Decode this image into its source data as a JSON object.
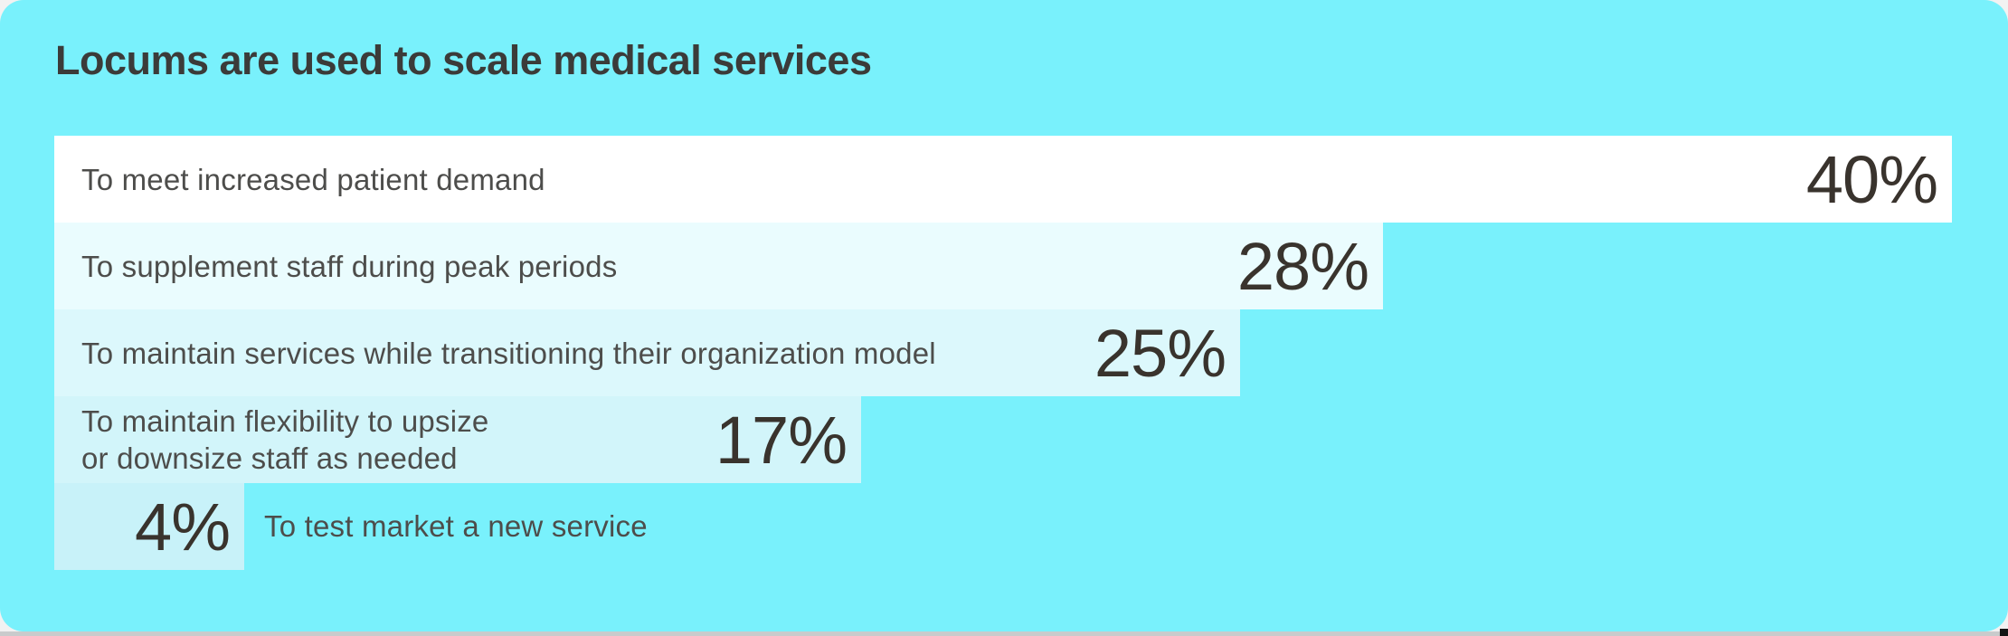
{
  "page": {
    "card_background": "#79f1fc",
    "bottom_strip_color": "#c9cbcc",
    "corner_mark_color": "#141414",
    "title_color": "#3b3b39",
    "label_color": "#4d4d4b",
    "value_color": "#39332d"
  },
  "chart_data": {
    "type": "bar",
    "orientation": "horizontal",
    "title": "Locums are used to scale medical services",
    "unit": "%",
    "xlim": [
      0,
      40
    ],
    "grid": false,
    "legend": false,
    "categories": [
      "To meet increased patient demand",
      "To supplement staff during peak periods",
      "To maintain services while transitioning their organization model",
      "To maintain flexibility to upsize or downsize staff as needed",
      "To test market a new service"
    ],
    "values": [
      40,
      28,
      25,
      17,
      4
    ],
    "bars": [
      {
        "label_lines": [
          "To meet increased patient demand"
        ],
        "value": 40,
        "pct_label": "40%",
        "color": "#ffffff",
        "label_placement": "inside"
      },
      {
        "label_lines": [
          "To supplement staff during peak periods"
        ],
        "value": 28,
        "pct_label": "28%",
        "color": "#eafcfe",
        "label_placement": "inside"
      },
      {
        "label_lines": [
          "To maintain services while transitioning their organization model"
        ],
        "value": 25,
        "pct_label": "25%",
        "color": "#dcf8fc",
        "label_placement": "inside"
      },
      {
        "label_lines": [
          "To maintain flexibility to upsize",
          "or downsize staff as needed"
        ],
        "value": 17,
        "pct_label": "17%",
        "color": "#d2f5fa",
        "label_placement": "inside"
      },
      {
        "label_lines": [
          "To test market a new service"
        ],
        "value": 4,
        "pct_label": "4%",
        "color": "#c8f2f9",
        "label_placement": "outside"
      }
    ]
  }
}
